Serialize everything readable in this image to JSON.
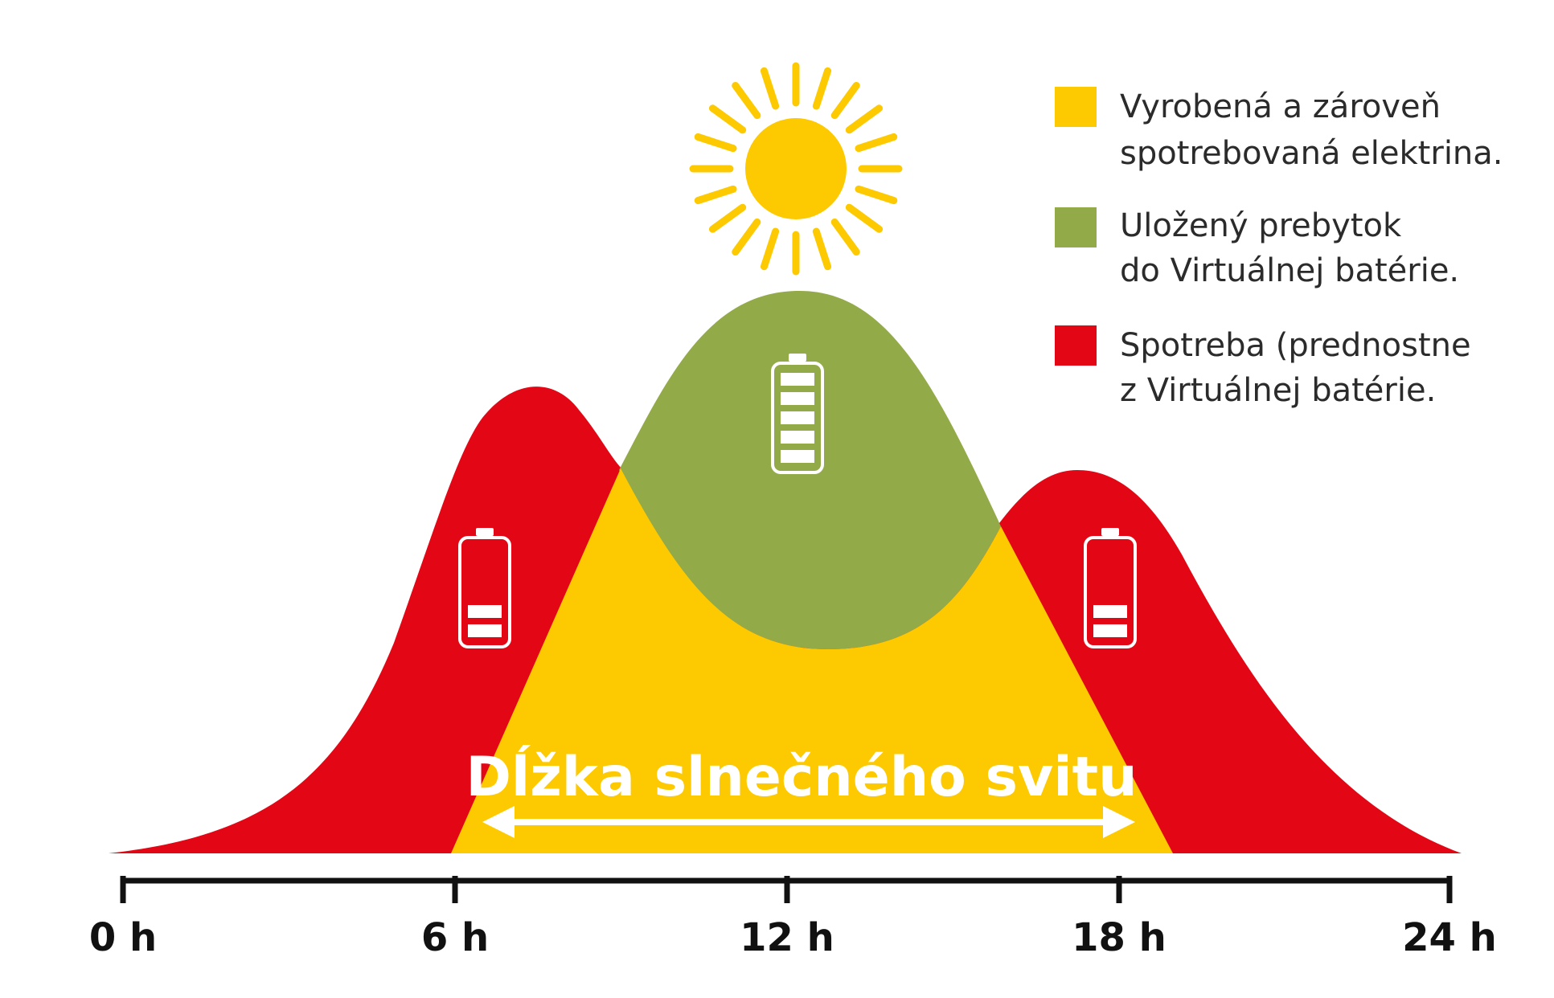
{
  "colors": {
    "produced": "#FDC900",
    "stored": "#93AA49",
    "consumption": "#E30614",
    "axis": "#111111",
    "sun": "#FDC900"
  },
  "legend": [
    {
      "color": "#FDC900",
      "line1": "Vyrobená a zároveň",
      "line2": "spotrebovaná elektrina."
    },
    {
      "color": "#93AA49",
      "line1": "Uložený prebytok",
      "line2": "do Virtuálnej batérie."
    },
    {
      "color": "#E30614",
      "line1": "Spotreba (prednostne",
      "line2": "z Virtuálnej batérie."
    }
  ],
  "axis": {
    "ticks": [
      "0 h",
      "6 h",
      "12 h",
      "18 h",
      "24 h"
    ]
  },
  "sunshine": {
    "label": "Dĺžka slnečného svitu"
  },
  "icons": {
    "sun": "sun-icon",
    "battery_full": "battery-full-icon",
    "battery_low": "battery-low-icon"
  }
}
